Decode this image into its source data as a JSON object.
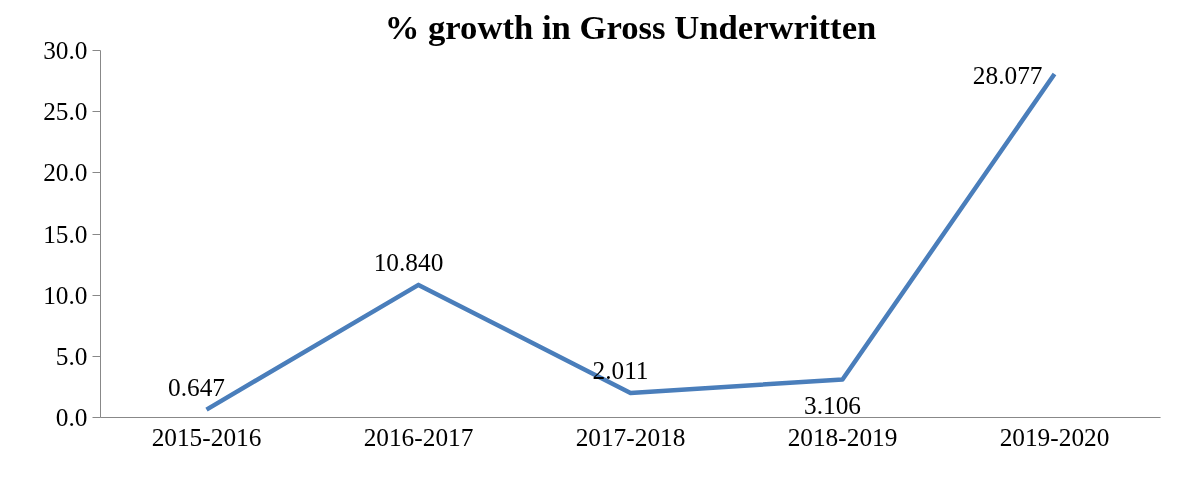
{
  "chart_data": {
    "type": "line",
    "title": "% growth in Gross Underwritten",
    "categories": [
      "2015-2016",
      "2016-2017",
      "2017-2018",
      "2018-2019",
      "2019-2020"
    ],
    "series": [
      {
        "color": "#4a7ebb",
        "values": [
          0.647,
          10.84,
          2.011,
          3.106,
          28.077
        ]
      }
    ],
    "value_labels": [
      "0.647",
      "10.840",
      "2.011",
      "3.106",
      "28.077"
    ],
    "ylim": [
      0,
      30
    ],
    "yticks": [
      {
        "value": 0,
        "label": "0.0"
      },
      {
        "value": 5,
        "label": "5.0"
      },
      {
        "value": 10,
        "label": "10.0"
      },
      {
        "value": 15,
        "label": "15.0"
      },
      {
        "value": 20,
        "label": "20.0"
      },
      {
        "value": 25,
        "label": "25.0"
      },
      {
        "value": 30,
        "label": "30.0"
      }
    ],
    "grid": false,
    "marker": "none",
    "line_style": "solid"
  }
}
